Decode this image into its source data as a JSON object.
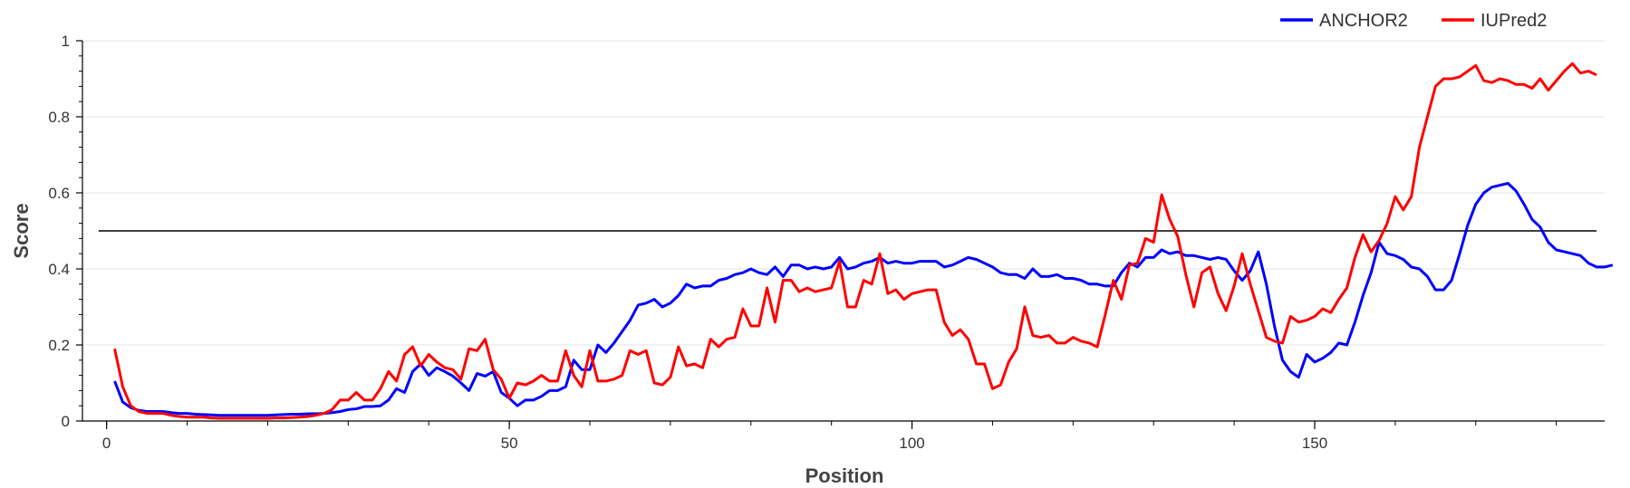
{
  "chart_data": {
    "type": "line",
    "xlabel": "Position",
    "ylabel": "Score",
    "xlim": [
      -3,
      186
    ],
    "ylim": [
      0,
      1
    ],
    "x_ticks": [
      "0",
      "50",
      "100",
      "150"
    ],
    "y_ticks": [
      "0",
      "0.2",
      "0.4",
      "0.6",
      "0.8",
      "1"
    ],
    "grid": "horizontal",
    "legend_position": "top-right",
    "threshold": 0.5,
    "threshold_color": "#000000",
    "series": [
      {
        "name": "ANCHOR2",
        "color": "#0000ff",
        "x_start": 1,
        "values": [
          0.105,
          0.05,
          0.035,
          0.028,
          0.025,
          0.025,
          0.025,
          0.022,
          0.02,
          0.02,
          0.018,
          0.017,
          0.016,
          0.015,
          0.015,
          0.015,
          0.015,
          0.015,
          0.015,
          0.015,
          0.016,
          0.017,
          0.018,
          0.018,
          0.019,
          0.019,
          0.02,
          0.022,
          0.025,
          0.03,
          0.032,
          0.038,
          0.038,
          0.04,
          0.055,
          0.085,
          0.075,
          0.13,
          0.15,
          0.12,
          0.14,
          0.13,
          0.118,
          0.1,
          0.08,
          0.125,
          0.118,
          0.13,
          0.075,
          0.06,
          0.04,
          0.055,
          0.055,
          0.065,
          0.08,
          0.08,
          0.09,
          0.16,
          0.135,
          0.135,
          0.2,
          0.18,
          0.205,
          0.235,
          0.265,
          0.305,
          0.31,
          0.32,
          0.3,
          0.31,
          0.33,
          0.36,
          0.35,
          0.355,
          0.355,
          0.37,
          0.375,
          0.385,
          0.39,
          0.4,
          0.39,
          0.385,
          0.405,
          0.38,
          0.41,
          0.41,
          0.4,
          0.405,
          0.4,
          0.405,
          0.43,
          0.4,
          0.405,
          0.415,
          0.42,
          0.43,
          0.415,
          0.42,
          0.415,
          0.415,
          0.42,
          0.42,
          0.42,
          0.405,
          0.41,
          0.42,
          0.43,
          0.425,
          0.415,
          0.405,
          0.39,
          0.385,
          0.385,
          0.375,
          0.4,
          0.38,
          0.38,
          0.385,
          0.375,
          0.375,
          0.37,
          0.36,
          0.36,
          0.355,
          0.355,
          0.39,
          0.415,
          0.405,
          0.43,
          0.43,
          0.45,
          0.44,
          0.445,
          0.435,
          0.435,
          0.43,
          0.425,
          0.43,
          0.425,
          0.395,
          0.37,
          0.395,
          0.445,
          0.36,
          0.25,
          0.16,
          0.13,
          0.115,
          0.175,
          0.155,
          0.165,
          0.18,
          0.205,
          0.2,
          0.26,
          0.33,
          0.39,
          0.47,
          0.44,
          0.435,
          0.425,
          0.405,
          0.4,
          0.38,
          0.345,
          0.345,
          0.37,
          0.44,
          0.515,
          0.57,
          0.6,
          0.615,
          0.62,
          0.625,
          0.605,
          0.57,
          0.53,
          0.51,
          0.47,
          0.45,
          0.445,
          0.44,
          0.435,
          0.415,
          0.405,
          0.405,
          0.41
        ]
      },
      {
        "name": "IUPred2",
        "color": "#ff0000",
        "x_start": 1,
        "values": [
          0.19,
          0.09,
          0.04,
          0.025,
          0.02,
          0.02,
          0.02,
          0.015,
          0.012,
          0.01,
          0.01,
          0.01,
          0.008,
          0.007,
          0.007,
          0.007,
          0.007,
          0.007,
          0.007,
          0.007,
          0.008,
          0.008,
          0.009,
          0.01,
          0.012,
          0.015,
          0.02,
          0.03,
          0.055,
          0.055,
          0.075,
          0.055,
          0.055,
          0.085,
          0.13,
          0.105,
          0.175,
          0.195,
          0.145,
          0.175,
          0.155,
          0.14,
          0.135,
          0.11,
          0.19,
          0.185,
          0.215,
          0.135,
          0.11,
          0.06,
          0.1,
          0.095,
          0.105,
          0.12,
          0.105,
          0.105,
          0.185,
          0.12,
          0.09,
          0.185,
          0.105,
          0.105,
          0.11,
          0.12,
          0.185,
          0.175,
          0.185,
          0.1,
          0.095,
          0.115,
          0.195,
          0.145,
          0.15,
          0.14,
          0.215,
          0.195,
          0.215,
          0.22,
          0.295,
          0.25,
          0.25,
          0.35,
          0.26,
          0.37,
          0.37,
          0.34,
          0.35,
          0.34,
          0.345,
          0.35,
          0.42,
          0.3,
          0.3,
          0.37,
          0.36,
          0.44,
          0.335,
          0.345,
          0.32,
          0.335,
          0.34,
          0.345,
          0.345,
          0.26,
          0.225,
          0.24,
          0.215,
          0.15,
          0.15,
          0.085,
          0.095,
          0.155,
          0.19,
          0.3,
          0.225,
          0.22,
          0.225,
          0.205,
          0.205,
          0.22,
          0.21,
          0.205,
          0.195,
          0.28,
          0.37,
          0.32,
          0.41,
          0.415,
          0.48,
          0.47,
          0.595,
          0.53,
          0.485,
          0.385,
          0.3,
          0.39,
          0.405,
          0.335,
          0.29,
          0.355,
          0.44,
          0.36,
          0.29,
          0.22,
          0.21,
          0.205,
          0.275,
          0.26,
          0.265,
          0.275,
          0.295,
          0.285,
          0.32,
          0.35,
          0.43,
          0.49,
          0.445,
          0.475,
          0.52,
          0.59,
          0.555,
          0.59,
          0.72,
          0.8,
          0.88,
          0.9,
          0.9,
          0.905,
          0.92,
          0.935,
          0.895,
          0.89,
          0.9,
          0.895,
          0.885,
          0.885,
          0.875,
          0.9,
          0.87,
          0.895,
          0.92,
          0.94,
          0.915,
          0.92,
          0.91
        ]
      }
    ]
  }
}
